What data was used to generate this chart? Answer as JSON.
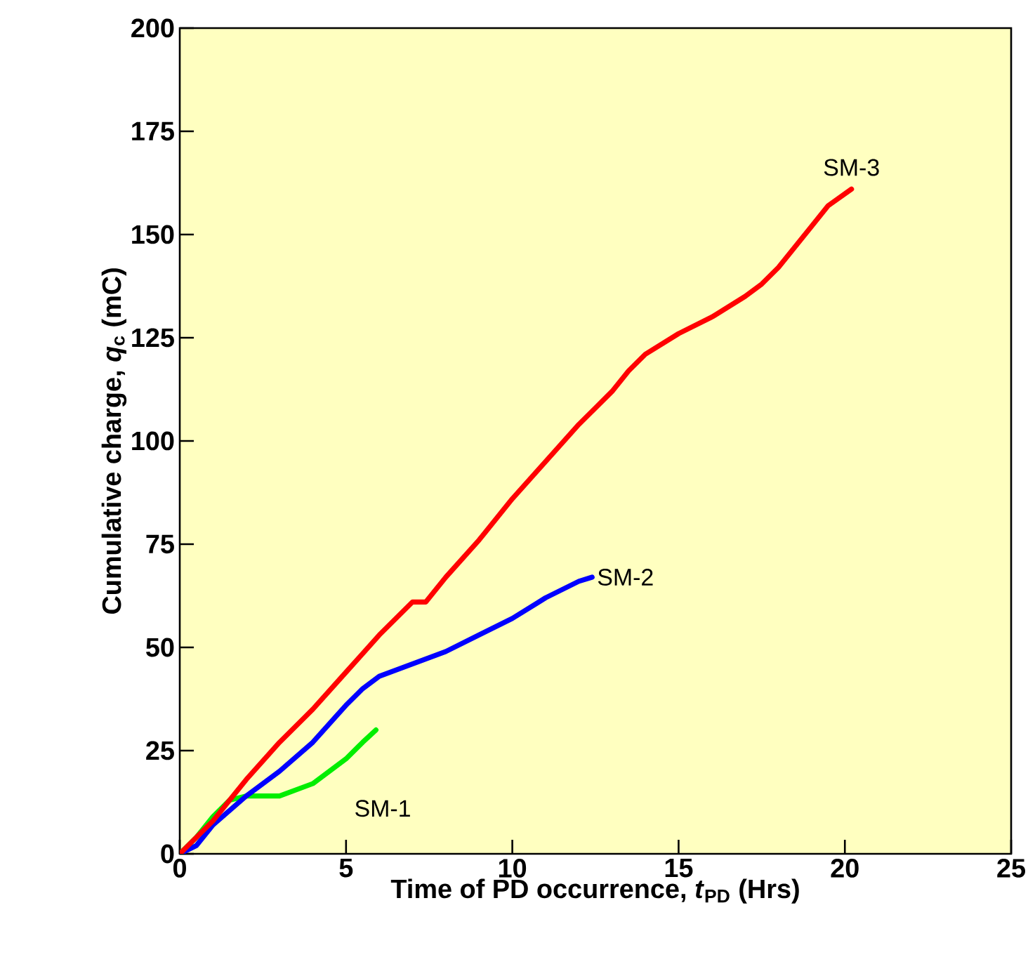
{
  "chart_data": {
    "type": "line",
    "xlabel": "Time of PD occurrence, *t*$_{PD}$ (Hrs)",
    "ylabel": "Cumulative charge, *q*$_{c}$ (mC)",
    "xlim": [
      0,
      25
    ],
    "ylim": [
      0,
      200
    ],
    "xticks": [
      0,
      5,
      10,
      15,
      20,
      25
    ],
    "yticks": [
      0,
      25,
      50,
      75,
      100,
      125,
      150,
      175,
      200
    ],
    "grid": false,
    "legend": false,
    "marker": "none",
    "line_style": "solid",
    "series": [
      {
        "name": "SM-1",
        "color": "#00ee00",
        "x": [
          0,
          0.5,
          1,
          1.5,
          2,
          3,
          4,
          5,
          5.5,
          5.9
        ],
        "values": [
          0,
          4,
          9,
          13,
          14,
          14,
          17,
          23,
          27,
          30
        ]
      },
      {
        "name": "SM-2",
        "color": "#0000ff",
        "x": [
          0,
          0.5,
          1,
          2,
          3,
          4,
          5,
          5.5,
          6,
          7,
          8,
          9,
          10,
          11,
          12,
          12.4
        ],
        "values": [
          0,
          2,
          7,
          14,
          20,
          27,
          36,
          40,
          43,
          46,
          49,
          53,
          57,
          62,
          66,
          67
        ]
      },
      {
        "name": "SM-3",
        "color": "#ff0000",
        "x": [
          0,
          1,
          1.5,
          2,
          3,
          4,
          5,
          6,
          7,
          7.4,
          8,
          9,
          10,
          11,
          12,
          12.5,
          13,
          13.5,
          14,
          15,
          16,
          17,
          17.5,
          18,
          18.5,
          19,
          19.5,
          20.2
        ],
        "values": [
          0,
          8,
          13,
          18,
          27,
          35,
          44,
          53,
          61,
          61,
          67,
          76,
          86,
          95,
          104,
          108,
          112,
          117,
          121,
          126,
          130,
          135,
          138,
          142,
          147,
          152,
          157,
          161
        ]
      }
    ]
  }
}
